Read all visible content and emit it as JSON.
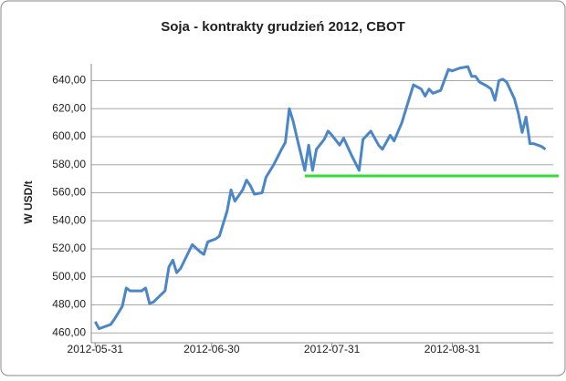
{
  "chart_data": {
    "type": "line",
    "title": "Soja - kontrakty grudzień 2012, CBOT",
    "y_label": "W USD/t",
    "grid": true,
    "xlim": [
      "2012-05-30",
      "2012-09-26"
    ],
    "xticks": [
      "2012-05-31",
      "2012-06-30",
      "2012-07-31",
      "2012-08-31"
    ],
    "ylim": [
      453,
      652
    ],
    "yticks": [
      {
        "value": 460,
        "label": "460,00"
      },
      {
        "value": 480,
        "label": "480,00"
      },
      {
        "value": 500,
        "label": "500,00"
      },
      {
        "value": 520,
        "label": "520,00"
      },
      {
        "value": 540,
        "label": "540,00"
      },
      {
        "value": 560,
        "label": "560,00"
      },
      {
        "value": 580,
        "label": "580,00"
      },
      {
        "value": 600,
        "label": "600,00"
      },
      {
        "value": 620,
        "label": "620,00"
      },
      {
        "value": 640,
        "label": "640,00"
      }
    ],
    "x": [
      "2012-05-31",
      "2012-06-01",
      "2012-06-04",
      "2012-06-05",
      "2012-06-07",
      "2012-06-08",
      "2012-06-09",
      "2012-06-12",
      "2012-06-13",
      "2012-06-14",
      "2012-06-15",
      "2012-06-18",
      "2012-06-19",
      "2012-06-20",
      "2012-06-21",
      "2012-06-22",
      "2012-06-25",
      "2012-06-27",
      "2012-06-28",
      "2012-06-29",
      "2012-07-01",
      "2012-07-02",
      "2012-07-04",
      "2012-07-05",
      "2012-07-06",
      "2012-07-08",
      "2012-07-09",
      "2012-07-10",
      "2012-07-11",
      "2012-07-13",
      "2012-07-14",
      "2012-07-16",
      "2012-07-18",
      "2012-07-19",
      "2012-07-20",
      "2012-07-21",
      "2012-07-22",
      "2012-07-24",
      "2012-07-25",
      "2012-07-26",
      "2012-07-27",
      "2012-07-29",
      "2012-07-30",
      "2012-07-31",
      "2012-08-02",
      "2012-08-03",
      "2012-08-05",
      "2012-08-07",
      "2012-08-08",
      "2012-08-10",
      "2012-08-12",
      "2012-08-13",
      "2012-08-15",
      "2012-08-16",
      "2012-08-18",
      "2012-08-19",
      "2012-08-21",
      "2012-08-23",
      "2012-08-24",
      "2012-08-25",
      "2012-08-26",
      "2012-08-28",
      "2012-08-30",
      "2012-08-31",
      "2012-09-02",
      "2012-09-04",
      "2012-09-05",
      "2012-09-06",
      "2012-09-07",
      "2012-09-09",
      "2012-09-10",
      "2012-09-11",
      "2012-09-12",
      "2012-09-13",
      "2012-09-14",
      "2012-09-16",
      "2012-09-17",
      "2012-09-18",
      "2012-09-19",
      "2012-09-20",
      "2012-09-21",
      "2012-09-23",
      "2012-09-24"
    ],
    "series": [
      {
        "color": "#4a86c8",
        "values": [
          468,
          463,
          466,
          470,
          479,
          492,
          490,
          490,
          492,
          481,
          482,
          490,
          507,
          512,
          503,
          506,
          523,
          518,
          516,
          525,
          527,
          529,
          547,
          562,
          554,
          562,
          569,
          565,
          559,
          560,
          571,
          580,
          591,
          596,
          620,
          611,
          599,
          576,
          594,
          576,
          591,
          598,
          604,
          601,
          594,
          599,
          587,
          576,
          598,
          604,
          594,
          591,
          601,
          597,
          610,
          619,
          637,
          634,
          629,
          634,
          631,
          633,
          648,
          647,
          649,
          650,
          643,
          643,
          639,
          636,
          634,
          626,
          640,
          641,
          639,
          627,
          617,
          603,
          614,
          595,
          595,
          593,
          591
        ]
      }
    ],
    "reference_line": {
      "value": 572,
      "x_start": "2012-07-24",
      "color": "#33dd33"
    }
  }
}
